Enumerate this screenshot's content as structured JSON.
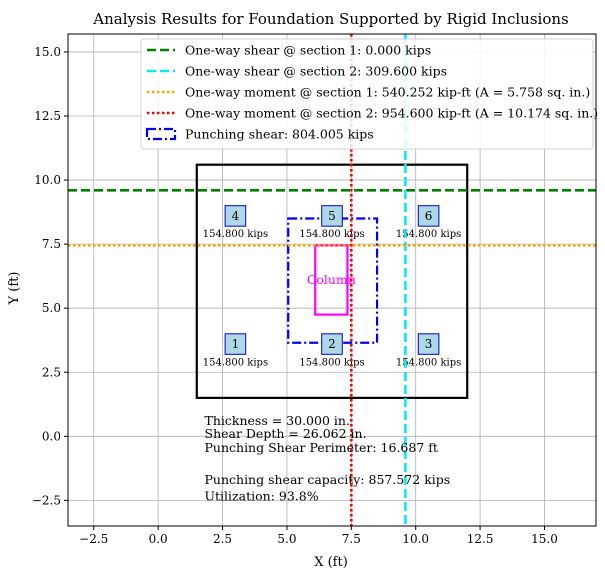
{
  "chart_data": {
    "type": "scatter",
    "title": "Analysis Results for Foundation Supported by Rigid Inclusions",
    "xlabel": "X (ft)",
    "ylabel": "Y (ft)",
    "xlim": [
      -3.5,
      17.0
    ],
    "ylim": [
      -3.5,
      15.7
    ],
    "xticks": [
      -2.5,
      0.0,
      2.5,
      5.0,
      7.5,
      10.0,
      12.5,
      15.0
    ],
    "xtick_labels": [
      "−2.5",
      "0.0",
      "2.5",
      "5.0",
      "7.5",
      "10.0",
      "12.5",
      "15.0"
    ],
    "yticks": [
      -2.5,
      0.0,
      2.5,
      5.0,
      7.5,
      10.0,
      12.5,
      15.0
    ],
    "ytick_labels": [
      "−2.5",
      "0.0",
      "2.5",
      "5.0",
      "7.5",
      "10.0",
      "12.5",
      "15.0"
    ],
    "grid": true,
    "legend_placement": "top-right",
    "foundation": {
      "x0": 1.5,
      "y0": 1.5,
      "x1": 12.0,
      "y1": 10.6,
      "color": "#000000"
    },
    "column": {
      "x0": 6.1,
      "y0": 4.75,
      "x1": 7.35,
      "y1": 7.45,
      "label": "Column",
      "color": "#ff00ff"
    },
    "punching_perimeter": {
      "x0": 5.05,
      "y0": 3.65,
      "x1": 8.5,
      "y1": 8.5,
      "color": "#0000ee"
    },
    "piles": [
      {
        "id": "1",
        "x": 3.0,
        "y": 3.6,
        "load": "154.800 kips"
      },
      {
        "id": "2",
        "x": 6.75,
        "y": 3.6,
        "load": "154.800 kips"
      },
      {
        "id": "3",
        "x": 10.5,
        "y": 3.6,
        "load": "154.800 kips"
      },
      {
        "id": "4",
        "x": 3.0,
        "y": 8.6,
        "load": "154.800 kips"
      },
      {
        "id": "5",
        "x": 6.75,
        "y": 8.6,
        "load": "154.800 kips"
      },
      {
        "id": "6",
        "x": 10.5,
        "y": 8.6,
        "load": "154.800 kips"
      }
    ],
    "pile_size_ft": 0.8,
    "pile_fill": "#add8e6",
    "pile_edge": "#0000cd",
    "section_lines": [
      {
        "orientation": "horizontal",
        "value": 9.6,
        "color": "#008000",
        "style": "dashed"
      },
      {
        "orientation": "vertical",
        "value": 9.6,
        "color": "#00eeee",
        "style": "dashed"
      },
      {
        "orientation": "horizontal",
        "value": 7.45,
        "color": "#ffa500",
        "style": "dotted"
      },
      {
        "orientation": "vertical",
        "value": 7.5,
        "color": "#ff0000",
        "style": "dotted"
      }
    ],
    "legend": [
      {
        "label": "One-way shear @ section 1: 0.000 kips",
        "color": "#008000",
        "style": "dashed"
      },
      {
        "label": "One-way shear @ section 2: 309.600 kips",
        "color": "#00eeee",
        "style": "dashed"
      },
      {
        "label": "One-way moment @ section 1: 540.252 kip-ft (A = 5.758 sq. in.)",
        "color": "#ffa500",
        "style": "dotted"
      },
      {
        "label": "One-way moment @ section 2: 954.600 kip-ft (A = 10.174 sq. in.)",
        "color": "#ff0000",
        "style": "dotted"
      },
      {
        "label": "Punching shear: 804.005 kips",
        "color": "#0000ee",
        "style": "dashdot-box"
      }
    ],
    "annotations": [
      {
        "text": "Thickness = 30.000 in.",
        "x": 1.8,
        "y": 0.6
      },
      {
        "text": "Shear Depth = 26.062 in.",
        "x": 1.8,
        "y": 0.1
      },
      {
        "text": "Punching Shear Perimeter: 16.687 ft",
        "x": 1.8,
        "y": -0.45
      },
      {
        "text": "Punching shear capacity: 857.572 kips",
        "x": 1.8,
        "y": -1.7
      },
      {
        "text": "Utilization: 93.8%",
        "x": 1.8,
        "y": -2.35
      }
    ]
  }
}
